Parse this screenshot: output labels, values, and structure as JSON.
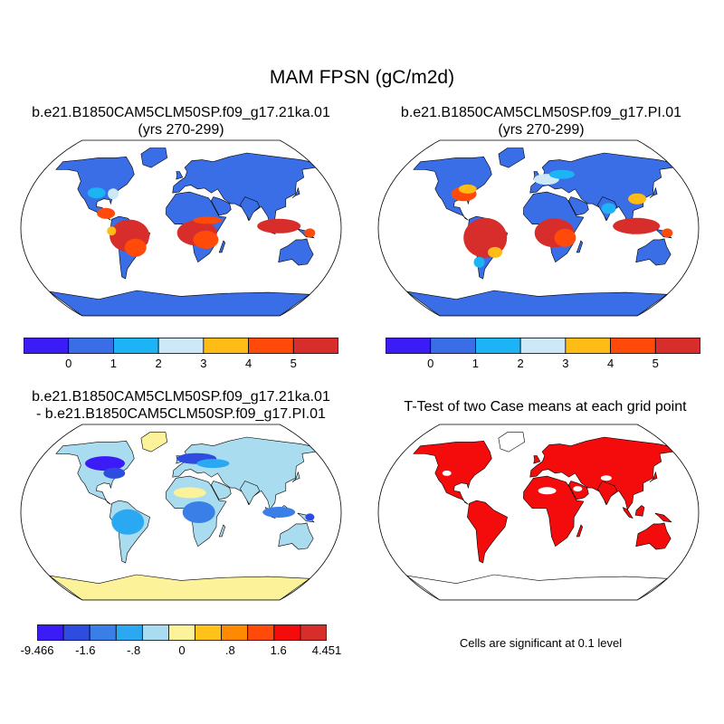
{
  "title": "MAM FPSN (gC/m2d)",
  "panels": [
    {
      "id": "case1",
      "title_line1": "b.e21.B1850CAM5CLM50SP.f09_g17.21ka.01",
      "title_line2": "(yrs 270-299)"
    },
    {
      "id": "case2",
      "title_line1": "b.e21.B1850CAM5CLM50SP.f09_g17.PI.01",
      "title_line2": "(yrs 270-299)"
    },
    {
      "id": "diff",
      "title_line1": "b.e21.B1850CAM5CLM50SP.f09_g17.21ka.01",
      "title_line2": "- b.e21.B1850CAM5CLM50SP.f09_g17.PI.01"
    },
    {
      "id": "ttest",
      "title_line1": "T-Test of two Case means at each grid point"
    }
  ],
  "colorbar_abs": {
    "colors": [
      "#3b1cf7",
      "#3a6ee6",
      "#1cb4f5",
      "#cde9f7",
      "#ffbc17",
      "#ff4a0a",
      "#d72d2b"
    ],
    "tick_labels": [
      "0",
      "1",
      "2",
      "3",
      "4",
      "5"
    ]
  },
  "colorbar_diff": {
    "colors": [
      "#3b1cf7",
      "#2e4de0",
      "#3a7fe8",
      "#2aa8f2",
      "#a9dcef",
      "#fbf29a",
      "#ffc21a",
      "#ff8a00",
      "#ff4a0a",
      "#f40b0b",
      "#d72d2b"
    ],
    "tick_labels": [
      "-9.466",
      "-1.6",
      "-.8",
      "0",
      ".8",
      "1.6",
      "4.451"
    ]
  },
  "significance_note": "Cells are significant at 0.1 level",
  "colors": {
    "ocean": "#ffffff",
    "coast": "#000000",
    "antarctica_case": "#3a6ee6",
    "antarctica_diff": "#fbf29a",
    "significant": "#f40b0b"
  }
}
